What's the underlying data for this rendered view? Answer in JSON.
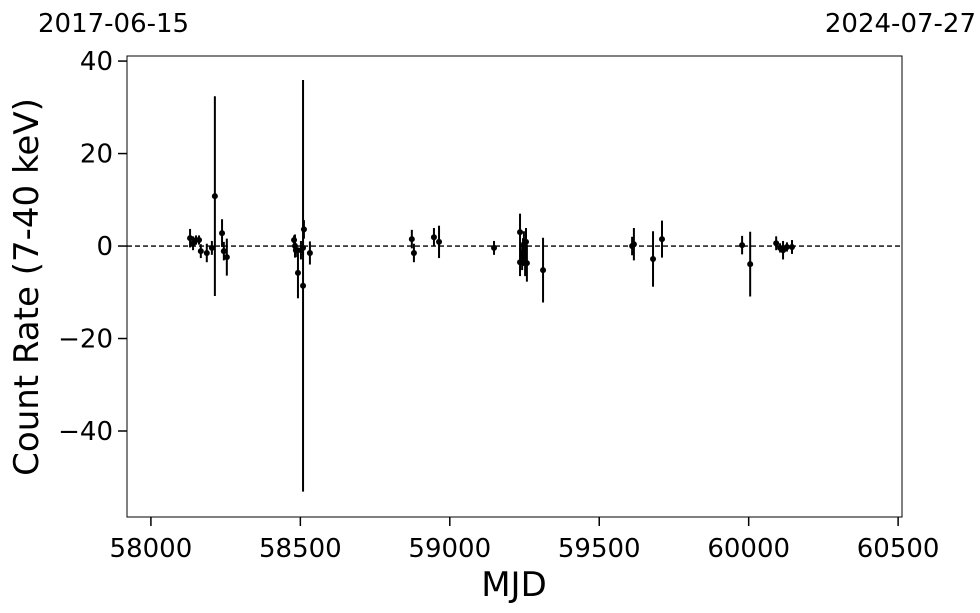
{
  "chart_data": {
    "type": "errorbar",
    "annotations": [
      "2017-06-15",
      "2024-07-27"
    ],
    "x_label": "MJD",
    "y_label": "Count Rate (7-40 keV)",
    "x": [
      58131,
      58141,
      58151,
      58161,
      58167,
      58187,
      58204,
      58214,
      58238,
      58244,
      58254,
      58479,
      58482,
      58485,
      58492,
      58502,
      58509,
      58509,
      58512,
      58532,
      58873,
      58880,
      58947,
      58964,
      59148,
      59235,
      59235,
      59242,
      59245,
      59248,
      59252,
      59255,
      59258,
      59312,
      59610,
      59616,
      59680,
      59710,
      59978,
      60005,
      60092,
      60105,
      60115,
      60128,
      60145
    ],
    "values": [
      1.7,
      0.6,
      1.3,
      1.3,
      -1.1,
      -1.5,
      -0.4,
      10.8,
      2.8,
      -1.1,
      -2.4,
      1.3,
      0,
      -0.9,
      -5.8,
      -0.9,
      -0.4,
      -8.6,
      3.6,
      -1.5,
      1.5,
      -1.5,
      1.9,
      0.9,
      -0.4,
      3.0,
      -3.5,
      -2.2,
      -1.3,
      0.2,
      -3.5,
      0.9,
      -3.7,
      -5.2,
      0,
      0.4,
      -2.8,
      1.5,
      0.2,
      -3.9,
      0.6,
      -0.4,
      -0.9,
      -0.2,
      -0.2
    ],
    "errors": [
      2,
      1.5,
      1,
      1,
      1.5,
      2,
      1.5,
      21.6,
      3,
      2,
      4,
      1,
      2.5,
      1.5,
      5.5,
      2,
      1.5,
      44.5,
      2,
      2.5,
      2,
      2,
      2,
      3.5,
      1.5,
      4,
      3,
      3,
      3,
      3,
      3,
      3,
      4,
      7,
      2,
      3.5,
      6,
      4,
      2,
      7,
      1.5,
      1,
      2,
      1,
      1.5
    ],
    "color": "#000000",
    "hline": 0,
    "xlim": [
      57920,
      60513
    ],
    "ylim": [
      -58.6,
      41.1
    ],
    "xticks": [
      58000,
      58500,
      59000,
      59500,
      60000,
      60500
    ],
    "yticks": [
      {
        "value": -40,
        "label": "−40"
      },
      {
        "value": -20,
        "label": "−20"
      },
      0,
      20,
      40
    ]
  }
}
